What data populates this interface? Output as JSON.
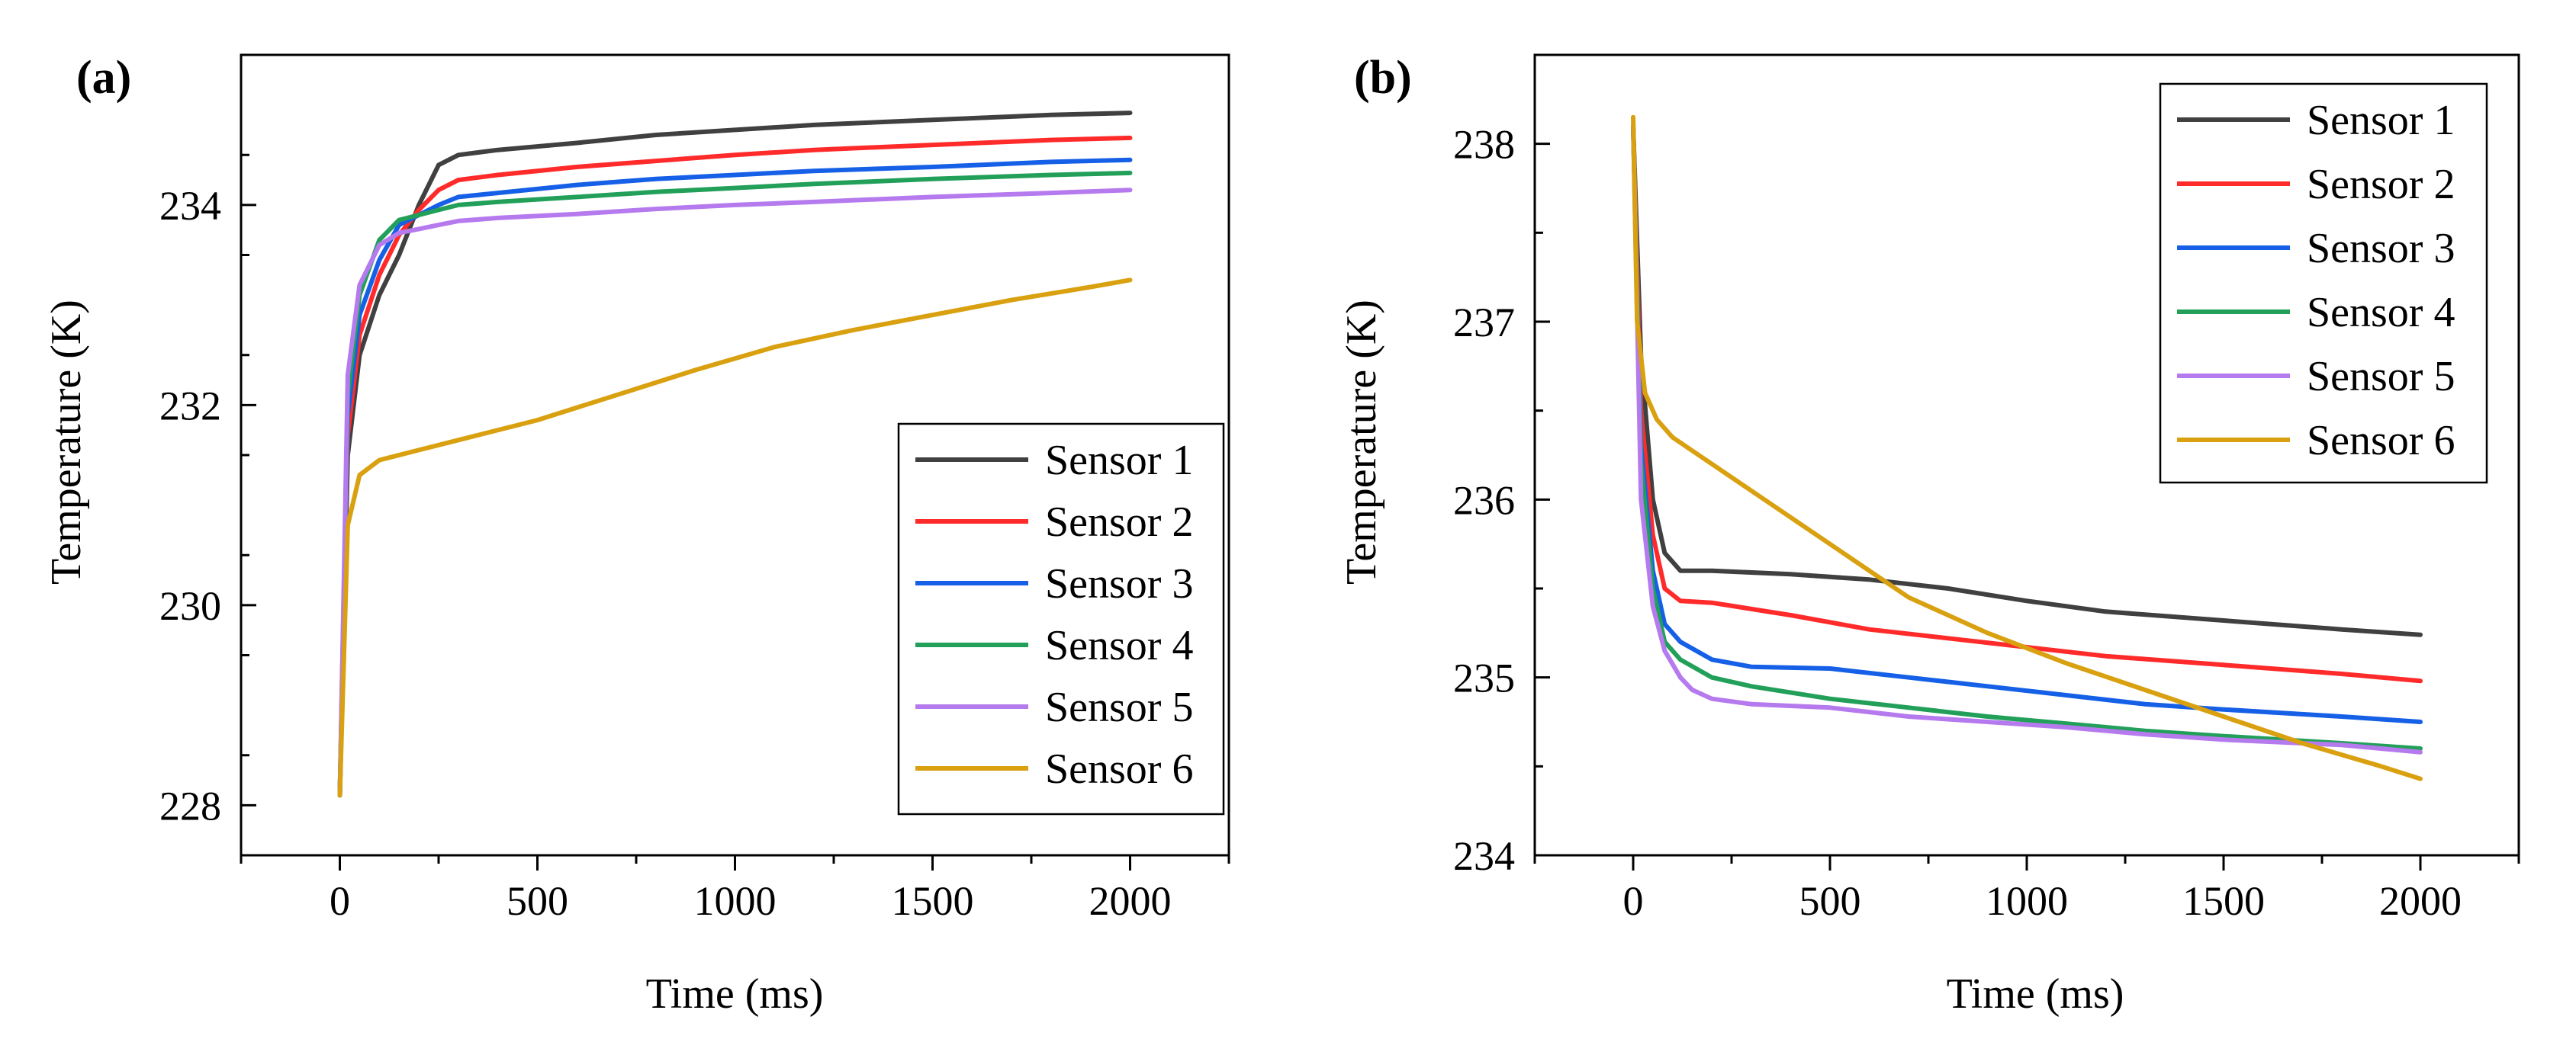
{
  "chart_data": [
    {
      "type": "line",
      "panel_label": "(a)",
      "xlabel": "Time  (ms)",
      "ylabel": "Temperature (K)",
      "xlim": [
        -250,
        2250
      ],
      "ylim": [
        227.5,
        235.5
      ],
      "xticks": [
        0,
        500,
        1000,
        1500,
        2000
      ],
      "yticks": [
        228,
        230,
        232,
        234
      ],
      "legend_position": "bottom-right",
      "series": [
        {
          "name": "Sensor 1",
          "color": "#404040",
          "x": [
            0,
            20,
            50,
            100,
            150,
            200,
            250,
            300,
            400,
            600,
            800,
            1000,
            1200,
            1500,
            1800,
            2000
          ],
          "y": [
            228.1,
            231.5,
            232.5,
            233.1,
            233.5,
            234.0,
            234.4,
            234.5,
            234.55,
            234.62,
            234.7,
            234.75,
            234.8,
            234.85,
            234.9,
            234.92
          ]
        },
        {
          "name": "Sensor 2",
          "color": "#ff2b2b",
          "x": [
            0,
            20,
            50,
            100,
            150,
            200,
            250,
            300,
            400,
            600,
            800,
            1000,
            1200,
            1500,
            1800,
            2000
          ],
          "y": [
            228.1,
            231.7,
            232.7,
            233.3,
            233.7,
            233.95,
            234.15,
            234.25,
            234.3,
            234.38,
            234.44,
            234.5,
            234.55,
            234.6,
            234.65,
            234.67
          ]
        },
        {
          "name": "Sensor 3",
          "color": "#1560e6",
          "x": [
            0,
            20,
            50,
            100,
            150,
            200,
            250,
            300,
            400,
            600,
            800,
            1000,
            1200,
            1500,
            1800,
            2000
          ],
          "y": [
            228.1,
            231.9,
            232.9,
            233.45,
            233.8,
            233.9,
            234.0,
            234.08,
            234.12,
            234.2,
            234.26,
            234.3,
            234.34,
            234.38,
            234.43,
            234.45
          ]
        },
        {
          "name": "Sensor 4",
          "color": "#22a05a",
          "x": [
            0,
            20,
            50,
            100,
            150,
            200,
            250,
            300,
            400,
            600,
            800,
            1000,
            1200,
            1500,
            1800,
            2000
          ],
          "y": [
            228.1,
            232.1,
            233.1,
            233.65,
            233.85,
            233.9,
            233.95,
            234.0,
            234.03,
            234.08,
            234.13,
            234.17,
            234.21,
            234.26,
            234.3,
            234.32
          ]
        },
        {
          "name": "Sensor 5",
          "color": "#b57aee",
          "x": [
            0,
            20,
            50,
            100,
            150,
            200,
            250,
            300,
            400,
            600,
            800,
            1000,
            1200,
            1500,
            1800,
            2000
          ],
          "y": [
            228.1,
            232.3,
            233.2,
            233.6,
            233.72,
            233.76,
            233.8,
            233.84,
            233.87,
            233.91,
            233.96,
            234.0,
            234.03,
            234.08,
            234.12,
            234.15
          ]
        },
        {
          "name": "Sensor 6",
          "color": "#d9a010",
          "x": [
            0,
            20,
            50,
            100,
            200,
            300,
            500,
            700,
            900,
            1100,
            1300,
            1500,
            1700,
            1900,
            2000
          ],
          "y": [
            228.1,
            230.8,
            231.3,
            231.45,
            231.55,
            231.65,
            231.85,
            232.1,
            232.35,
            232.58,
            232.75,
            232.9,
            233.05,
            233.18,
            233.25
          ]
        }
      ]
    },
    {
      "type": "line",
      "panel_label": "(b)",
      "xlabel": "Time (ms)",
      "ylabel": "Temperature (K)",
      "xlim": [
        -250,
        2250
      ],
      "ylim": [
        234,
        238.5
      ],
      "xticks": [
        0,
        500,
        1000,
        1500,
        2000
      ],
      "yticks": [
        234,
        235,
        236,
        237,
        238
      ],
      "legend_position": "top-right",
      "series": [
        {
          "name": "Sensor 1",
          "color": "#404040",
          "x": [
            0,
            20,
            50,
            80,
            120,
            200,
            400,
            600,
            800,
            1000,
            1200,
            1500,
            1800,
            2000
          ],
          "y": [
            238.1,
            236.8,
            236.0,
            235.7,
            235.6,
            235.6,
            235.58,
            235.55,
            235.5,
            235.43,
            235.37,
            235.32,
            235.27,
            235.24
          ]
        },
        {
          "name": "Sensor 2",
          "color": "#ff2b2b",
          "x": [
            0,
            20,
            50,
            80,
            120,
            200,
            400,
            600,
            800,
            1000,
            1200,
            1500,
            1800,
            2000
          ],
          "y": [
            238.1,
            236.5,
            235.8,
            235.5,
            235.43,
            235.42,
            235.35,
            235.27,
            235.22,
            235.17,
            235.12,
            235.07,
            235.02,
            234.98
          ]
        },
        {
          "name": "Sensor 3",
          "color": "#1560e6",
          "x": [
            0,
            20,
            50,
            80,
            120,
            200,
            300,
            500,
            700,
            900,
            1100,
            1300,
            1500,
            1800,
            2000
          ],
          "y": [
            238.1,
            236.3,
            235.6,
            235.3,
            235.2,
            235.1,
            235.06,
            235.05,
            235.0,
            234.95,
            234.9,
            234.85,
            234.82,
            234.78,
            234.75
          ]
        },
        {
          "name": "Sensor 4",
          "color": "#22a05a",
          "x": [
            0,
            20,
            50,
            80,
            120,
            200,
            300,
            500,
            700,
            900,
            1100,
            1300,
            1500,
            1800,
            2000
          ],
          "y": [
            238.1,
            236.2,
            235.5,
            235.2,
            235.1,
            235.0,
            234.95,
            234.88,
            234.83,
            234.78,
            234.74,
            234.7,
            234.67,
            234.63,
            234.6
          ]
        },
        {
          "name": "Sensor 5",
          "color": "#b57aee",
          "x": [
            0,
            20,
            50,
            80,
            120,
            150,
            200,
            300,
            500,
            700,
            900,
            1100,
            1300,
            1500,
            1800,
            2000
          ],
          "y": [
            238.1,
            236.0,
            235.4,
            235.15,
            235.0,
            234.93,
            234.88,
            234.85,
            234.83,
            234.78,
            234.75,
            234.72,
            234.68,
            234.65,
            234.62,
            234.58
          ]
        },
        {
          "name": "Sensor 6",
          "color": "#d9a010",
          "x": [
            0,
            10,
            30,
            60,
            100,
            200,
            300,
            500,
            700,
            900,
            1100,
            1300,
            1500,
            1700,
            1900,
            2000
          ],
          "y": [
            238.15,
            237.0,
            236.6,
            236.45,
            236.35,
            236.2,
            236.05,
            235.75,
            235.45,
            235.25,
            235.08,
            234.93,
            234.78,
            234.63,
            234.5,
            234.43
          ]
        }
      ]
    }
  ]
}
